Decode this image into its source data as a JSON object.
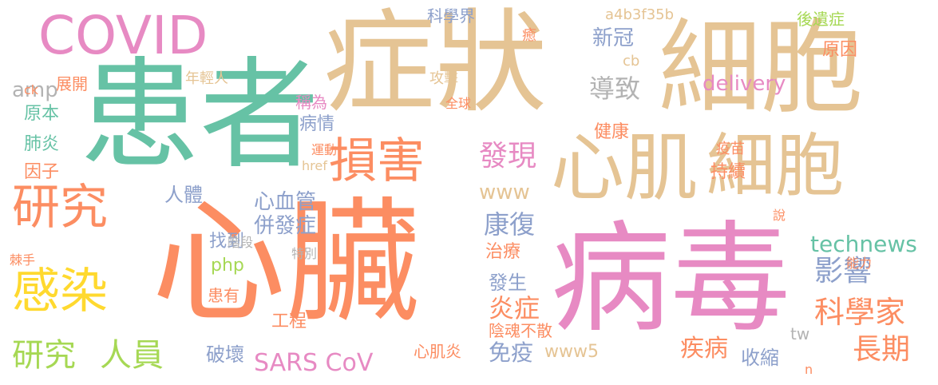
{
  "palette": {
    "orange": "#fc8d62",
    "teal": "#66c2a5",
    "tan": "#e5c494",
    "pink": "#e78ac3",
    "lavender": "#8da0cb",
    "green": "#a6d854",
    "yellow": "#ffd92f",
    "grey": "#b3b3b3"
  },
  "words": [
    "心臟",
    "病毒",
    "患者",
    "症狀",
    "細胞",
    "COVID",
    "細胞",
    "心肌",
    "損害",
    "研究",
    "感染",
    "研究",
    "人員",
    "發現",
    "康復",
    "科學家",
    "長期",
    "影響",
    "technews",
    "SARS CoV",
    "免疫",
    "疾病",
    "心血管",
    "併發症",
    "炎症",
    "發生",
    "治療",
    "破壞",
    "收縮",
    "delivery",
    "後遺症",
    "原因",
    "病情",
    "科學界",
    "新冠",
    "導致",
    "a4b3f35b",
    "cb",
    "健康",
    "持續",
    "疫苗",
    "展開",
    "稱為",
    "年輕人",
    "攻擊",
    "全球",
    "amp",
    "原本",
    "肺炎",
    "因子",
    "www",
    "人體",
    "找到",
    "php",
    "患有",
    "工程",
    "www5",
    "心肌炎",
    "陰魂不散",
    "tw",
    "說",
    "能力",
    "運動",
    "href",
    "階段",
    "特別",
    "棘手",
    "ck",
    "癒",
    "n"
  ]
}
